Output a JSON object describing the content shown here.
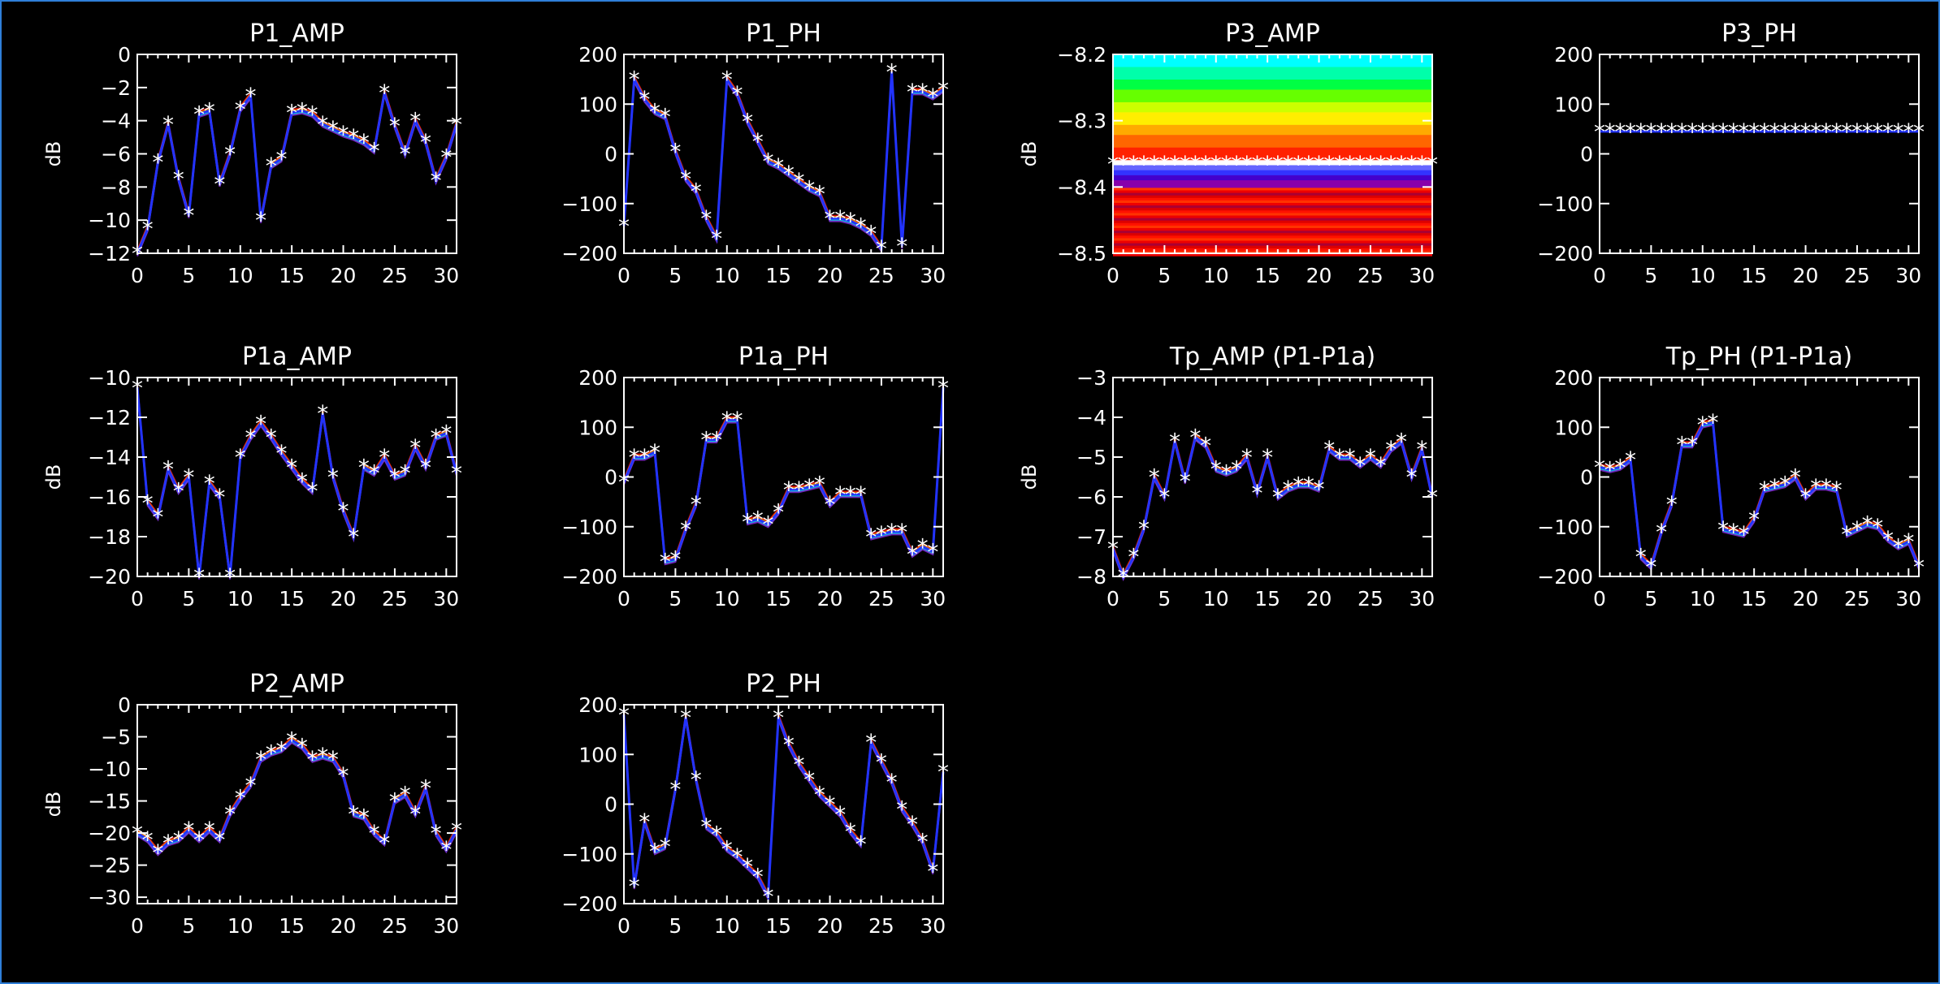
{
  "chart_data": [
    {
      "id": "p1_amp",
      "type": "line",
      "title": "P1_AMP",
      "ylabel": "dB",
      "xlim": [
        0,
        31
      ],
      "ylim": [
        -12,
        0
      ],
      "xticks": [
        "0",
        "5",
        "10",
        "15",
        "20",
        "25",
        "30"
      ],
      "yticks": [
        "0",
        "-2",
        "-4",
        "-6",
        "-8",
        "-10",
        "-12"
      ],
      "x": [
        0,
        1,
        2,
        3,
        4,
        5,
        6,
        7,
        8,
        9,
        10,
        11,
        12,
        13,
        14,
        15,
        16,
        17,
        18,
        19,
        20,
        21,
        22,
        23,
        24,
        25,
        26,
        27,
        28,
        29,
        30,
        31
      ],
      "series": [
        {
          "values": [
            -12,
            -10.5,
            -6.5,
            -4.2,
            -7.5,
            -9.7,
            -3.6,
            -3.4,
            -7.8,
            -6,
            -3.3,
            -2.5,
            -10,
            -6.7,
            -6.3,
            -3.5,
            -3.4,
            -3.6,
            -4.2,
            -4.5,
            -4.8,
            -5,
            -5.3,
            -5.8,
            -2.3,
            -4.3,
            -6,
            -4,
            -5.3,
            -7.6,
            -6.2,
            -4.2
          ]
        }
      ]
    },
    {
      "id": "p1_ph",
      "type": "line",
      "title": "P1_PH",
      "ylabel": "",
      "xlim": [
        0,
        31
      ],
      "ylim": [
        -200,
        200
      ],
      "xticks": [
        "0",
        "5",
        "10",
        "15",
        "20",
        "25",
        "30"
      ],
      "yticks": [
        "200",
        "100",
        "0",
        "-100",
        "-200"
      ],
      "x": [
        0,
        1,
        2,
        3,
        4,
        5,
        6,
        7,
        8,
        9,
        10,
        11,
        12,
        13,
        14,
        15,
        16,
        17,
        18,
        19,
        20,
        21,
        22,
        23,
        24,
        25,
        26,
        27,
        28,
        29,
        30,
        31
      ],
      "series": [
        {
          "values": [
            -145,
            150,
            110,
            85,
            75,
            5,
            -50,
            -75,
            -130,
            -170,
            150,
            120,
            65,
            25,
            -15,
            -25,
            -40,
            -55,
            -70,
            -80,
            -130,
            -130,
            -135,
            -145,
            -160,
            -190,
            165,
            -185,
            125,
            125,
            115,
            130
          ]
        }
      ]
    },
    {
      "id": "p3_amp",
      "type": "line",
      "title": "P3_AMP",
      "ylabel": "dB",
      "xlim": [
        0,
        31
      ],
      "ylim": [
        -8.5,
        -8.2
      ],
      "xticks": [
        "0",
        "5",
        "10",
        "15",
        "20",
        "25",
        "30"
      ],
      "yticks": [
        "-8.2",
        "-8.3",
        "-8.4",
        "-8.5"
      ],
      "x": [
        0,
        1,
        2,
        3,
        4,
        5,
        6,
        7,
        8,
        9,
        10,
        11,
        12,
        13,
        14,
        15,
        16,
        17,
        18,
        19,
        20,
        21,
        22,
        23,
        24,
        25,
        26,
        27,
        28,
        29,
        30,
        31
      ],
      "series": [
        {
          "values": [
            -8.365,
            -8.365,
            -8.365,
            -8.365,
            -8.365,
            -8.365,
            -8.365,
            -8.365,
            -8.365,
            -8.365,
            -8.365,
            -8.365,
            -8.365,
            -8.365,
            -8.365,
            -8.365,
            -8.365,
            -8.365,
            -8.365,
            -8.365,
            -8.365,
            -8.365,
            -8.365,
            -8.365,
            -8.365,
            -8.365,
            -8.365,
            -8.365,
            -8.365,
            -8.365,
            -8.365,
            -8.365
          ]
        }
      ]
    },
    {
      "id": "p3_ph",
      "type": "line",
      "title": "P3_PH",
      "ylabel": "",
      "xlim": [
        0,
        31
      ],
      "ylim": [
        -200,
        200
      ],
      "xticks": [
        "0",
        "5",
        "10",
        "15",
        "20",
        "25",
        "30"
      ],
      "yticks": [
        "200",
        "100",
        "0",
        "-100",
        "-200"
      ],
      "x": [
        0,
        1,
        2,
        3,
        4,
        5,
        6,
        7,
        8,
        9,
        10,
        11,
        12,
        13,
        14,
        15,
        16,
        17,
        18,
        19,
        20,
        21,
        22,
        23,
        24,
        25,
        26,
        27,
        28,
        29,
        30,
        31
      ],
      "series": [
        {
          "values": [
            45,
            45,
            45,
            45,
            45,
            45,
            45,
            45,
            45,
            45,
            45,
            45,
            45,
            45,
            45,
            45,
            45,
            45,
            45,
            45,
            45,
            45,
            45,
            45,
            45,
            45,
            45,
            45,
            45,
            45,
            45,
            45
          ]
        }
      ]
    },
    {
      "id": "p1a_amp",
      "type": "line",
      "title": "P1a_AMP",
      "ylabel": "dB",
      "xlim": [
        0,
        31
      ],
      "ylim": [
        -20,
        -10
      ],
      "xticks": [
        "0",
        "5",
        "10",
        "15",
        "20",
        "25",
        "30"
      ],
      "yticks": [
        "-10",
        "-12",
        "-14",
        "-16",
        "-18",
        "-20"
      ],
      "x": [
        0,
        1,
        2,
        3,
        4,
        5,
        6,
        7,
        8,
        9,
        10,
        11,
        12,
        13,
        14,
        15,
        16,
        17,
        18,
        19,
        20,
        21,
        22,
        23,
        24,
        25,
        26,
        27,
        28,
        29,
        30,
        31
      ],
      "series": [
        {
          "values": [
            -10.5,
            -16.3,
            -17,
            -14.6,
            -15.7,
            -15,
            -20,
            -15.3,
            -16,
            -20,
            -14,
            -13,
            -12.3,
            -13,
            -13.8,
            -14.5,
            -15.2,
            -15.7,
            -11.8,
            -15,
            -16.7,
            -18,
            -14.5,
            -14.8,
            -14,
            -15,
            -14.8,
            -13.5,
            -14.5,
            -13,
            -12.8,
            -14.8
          ]
        }
      ]
    },
    {
      "id": "p1a_ph",
      "type": "line",
      "title": "P1a_PH",
      "ylabel": "",
      "xlim": [
        0,
        31
      ],
      "ylim": [
        -200,
        200
      ],
      "xticks": [
        "0",
        "5",
        "10",
        "15",
        "20",
        "25",
        "30"
      ],
      "yticks": [
        "200",
        "100",
        "0",
        "-100",
        "-200"
      ],
      "x": [
        0,
        1,
        2,
        3,
        4,
        5,
        6,
        7,
        8,
        9,
        10,
        11,
        12,
        13,
        14,
        15,
        16,
        17,
        18,
        19,
        20,
        21,
        22,
        23,
        24,
        25,
        26,
        27,
        28,
        29,
        30,
        31
      ],
      "series": [
        {
          "values": [
            -10,
            40,
            40,
            50,
            -170,
            -165,
            -105,
            -55,
            75,
            75,
            115,
            115,
            -90,
            -85,
            -95,
            -70,
            -25,
            -25,
            -20,
            -15,
            -55,
            -35,
            -35,
            -35,
            -120,
            -115,
            -110,
            -110,
            -155,
            -140,
            -150,
            180
          ]
        }
      ]
    },
    {
      "id": "tp_amp",
      "type": "line",
      "title": "Tp_AMP (P1-P1a)",
      "ylabel": "dB",
      "xlim": [
        0,
        31
      ],
      "ylim": [
        -8,
        -3
      ],
      "xticks": [
        "0",
        "5",
        "10",
        "15",
        "20",
        "25",
        "30"
      ],
      "yticks": [
        "-3",
        "-4",
        "-5",
        "-6",
        "-7",
        "-8"
      ],
      "x": [
        0,
        1,
        2,
        3,
        4,
        5,
        6,
        7,
        8,
        9,
        10,
        11,
        12,
        13,
        14,
        15,
        16,
        17,
        18,
        19,
        20,
        21,
        22,
        23,
        24,
        25,
        26,
        27,
        28,
        29,
        30,
        31
      ],
      "series": [
        {
          "values": [
            -7.3,
            -8,
            -7.5,
            -6.8,
            -5.5,
            -6,
            -4.6,
            -5.6,
            -4.5,
            -4.7,
            -5.3,
            -5.4,
            -5.3,
            -5,
            -5.9,
            -5,
            -6,
            -5.8,
            -5.7,
            -5.7,
            -5.8,
            -4.8,
            -5,
            -5,
            -5.2,
            -5,
            -5.2,
            -4.8,
            -4.6,
            -5.5,
            -4.8,
            -6
          ]
        }
      ]
    },
    {
      "id": "tp_ph",
      "type": "line",
      "title": "Tp_PH (P1-P1a)",
      "ylabel": "",
      "xlim": [
        0,
        31
      ],
      "ylim": [
        -200,
        200
      ],
      "xticks": [
        "0",
        "5",
        "10",
        "15",
        "20",
        "25",
        "30"
      ],
      "yticks": [
        "200",
        "100",
        "0",
        "-100",
        "-200"
      ],
      "x": [
        0,
        1,
        2,
        3,
        4,
        5,
        6,
        7,
        8,
        9,
        10,
        11,
        12,
        13,
        14,
        15,
        16,
        17,
        18,
        19,
        20,
        21,
        22,
        23,
        24,
        25,
        26,
        27,
        28,
        29,
        30,
        31
      ],
      "series": [
        {
          "values": [
            20,
            15,
            20,
            35,
            -160,
            -180,
            -110,
            -55,
            65,
            65,
            105,
            110,
            -105,
            -110,
            -115,
            -85,
            -25,
            -20,
            -15,
            0,
            -40,
            -20,
            -20,
            -25,
            -115,
            -105,
            -95,
            -100,
            -125,
            -140,
            -130,
            -180
          ]
        }
      ]
    },
    {
      "id": "p2_amp",
      "type": "line",
      "title": "P2_AMP",
      "ylabel": "dB",
      "xlim": [
        0,
        31
      ],
      "ylim": [
        -31,
        0
      ],
      "xticks": [
        "0",
        "5",
        "10",
        "15",
        "20",
        "25",
        "30"
      ],
      "yticks": [
        "0",
        "-5",
        "-10",
        "-15",
        "-20",
        "-25",
        "-30"
      ],
      "x": [
        0,
        1,
        2,
        3,
        4,
        5,
        6,
        7,
        8,
        9,
        10,
        11,
        12,
        13,
        14,
        15,
        16,
        17,
        18,
        19,
        20,
        21,
        22,
        23,
        24,
        25,
        26,
        27,
        28,
        29,
        30,
        31
      ],
      "series": [
        {
          "values": [
            -20,
            -21,
            -23,
            -21.5,
            -21,
            -19.5,
            -21,
            -19.5,
            -21,
            -17,
            -14.5,
            -12.5,
            -8.5,
            -7.5,
            -7,
            -5.5,
            -6.5,
            -8.5,
            -8,
            -8.5,
            -11,
            -17,
            -17.5,
            -20,
            -21.5,
            -15,
            -14,
            -17,
            -13,
            -20,
            -22.5,
            -19.5
          ]
        }
      ]
    },
    {
      "id": "p2_ph",
      "type": "line",
      "title": "P2_PH",
      "ylabel": "",
      "xlim": [
        0,
        31
      ],
      "ylim": [
        -200,
        200
      ],
      "xticks": [
        "0",
        "5",
        "10",
        "15",
        "20",
        "25",
        "30"
      ],
      "yticks": [
        "200",
        "100",
        "0",
        "-100",
        "-200"
      ],
      "x": [
        0,
        1,
        2,
        3,
        4,
        5,
        6,
        7,
        8,
        9,
        10,
        11,
        12,
        13,
        14,
        15,
        16,
        17,
        18,
        19,
        20,
        21,
        22,
        23,
        24,
        25,
        26,
        27,
        28,
        29,
        30,
        31
      ],
      "series": [
        {
          "values": [
            180,
            -165,
            -35,
            -95,
            -85,
            30,
            175,
            50,
            -45,
            -60,
            -90,
            -105,
            -125,
            -145,
            -185,
            175,
            120,
            80,
            50,
            20,
            0,
            -20,
            -55,
            -80,
            125,
            85,
            45,
            -10,
            -40,
            -75,
            -135,
            65
          ]
        }
      ]
    }
  ]
}
